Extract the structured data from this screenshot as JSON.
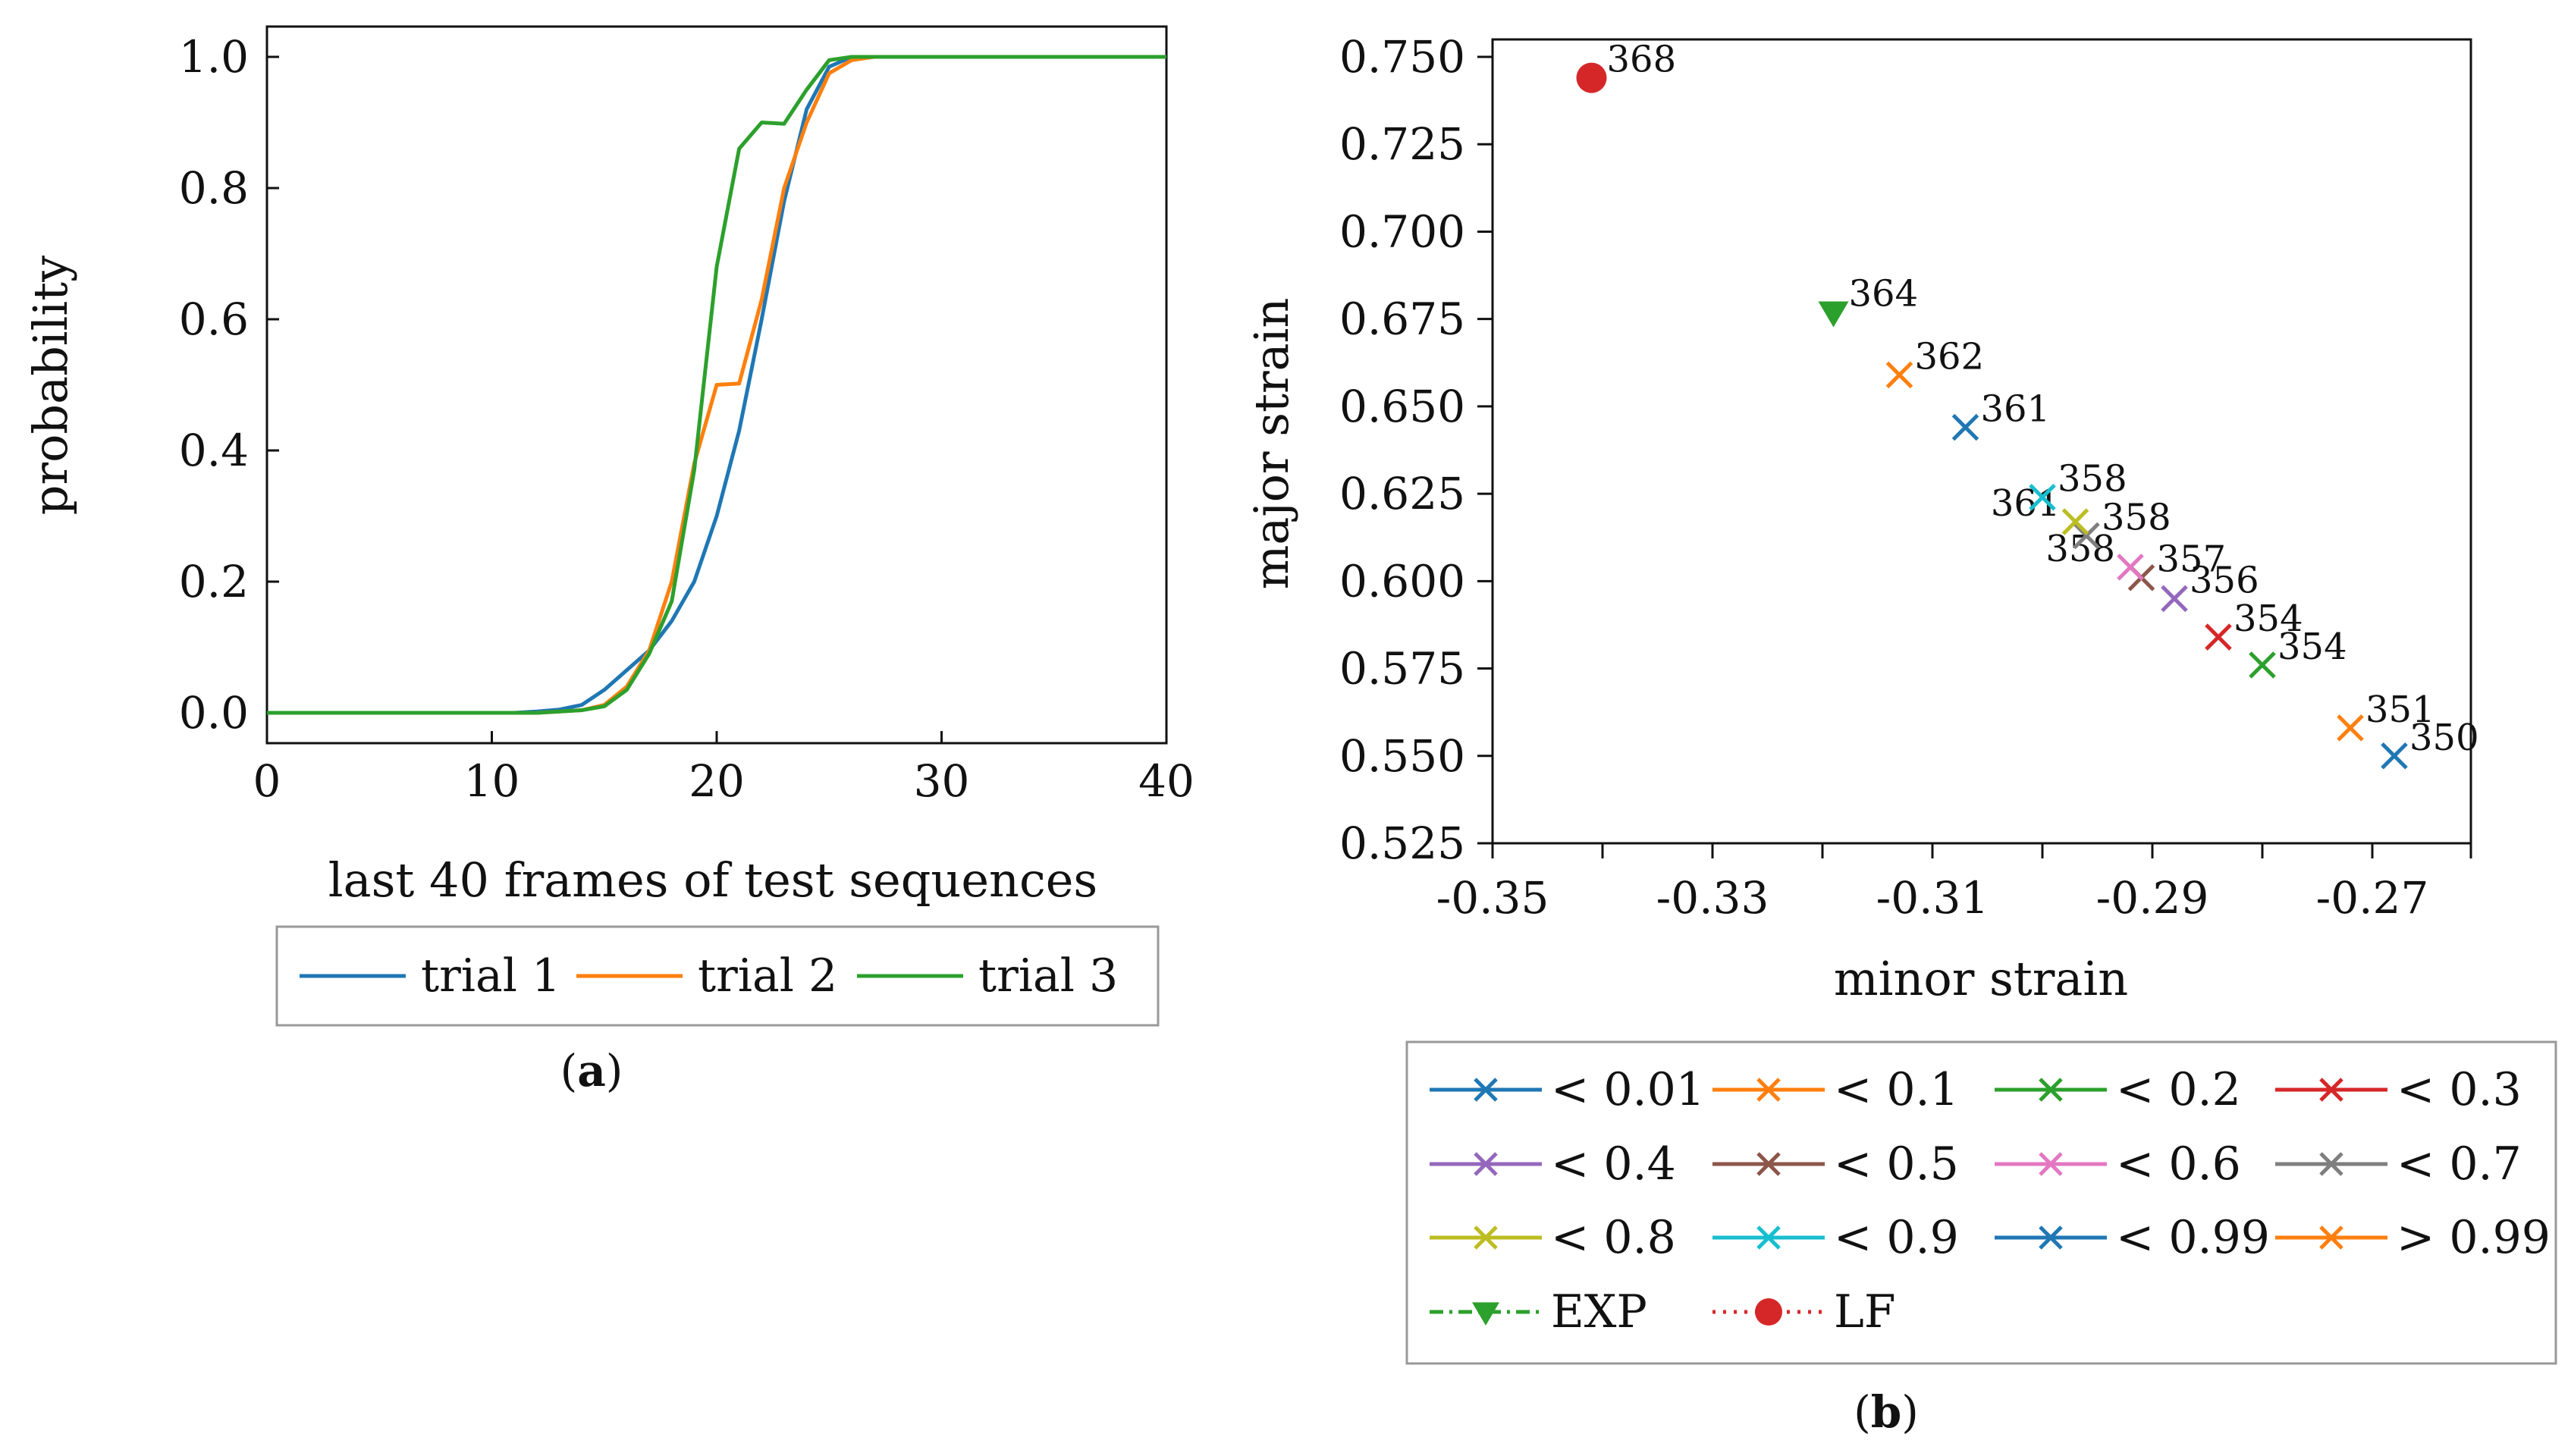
{
  "chart_data": [
    {
      "type": "line",
      "panel": "a",
      "caption": {
        "open": "(",
        "letter": "a",
        "close": ")"
      },
      "xlabel": "last 40 frames of test sequences",
      "ylabel": "probability",
      "xlim": [
        0,
        40
      ],
      "ylim": [
        0,
        1.0
      ],
      "xticks": [
        "0",
        "10",
        "20",
        "30",
        "40"
      ],
      "yticks": [
        "0.0",
        "0.2",
        "0.4",
        "0.6",
        "0.8",
        "1.0"
      ],
      "legend_position": "bottom",
      "series": [
        {
          "name": "trial 1",
          "color": "#1f77b4",
          "x": [
            0,
            11,
            12,
            13,
            14,
            15,
            16,
            17,
            18,
            19,
            20,
            21,
            22,
            23,
            24,
            25,
            26,
            27,
            28,
            40
          ],
          "y": [
            0,
            0,
            0.002,
            0.005,
            0.012,
            0.035,
            0.065,
            0.095,
            0.14,
            0.2,
            0.3,
            0.43,
            0.6,
            0.78,
            0.92,
            0.985,
            1.0,
            1.0,
            1.0,
            1.0
          ]
        },
        {
          "name": "trial 2",
          "color": "#ff7f0e",
          "x": [
            0,
            12,
            13,
            14,
            15,
            16,
            17,
            18,
            19,
            20,
            21,
            22,
            23,
            24,
            25,
            26,
            27,
            28,
            40
          ],
          "y": [
            0,
            0,
            0.002,
            0.004,
            0.012,
            0.04,
            0.095,
            0.2,
            0.38,
            0.5,
            0.502,
            0.63,
            0.8,
            0.9,
            0.975,
            0.995,
            1.0,
            1.0,
            1.0
          ]
        },
        {
          "name": "trial 3",
          "color": "#2ca02c",
          "x": [
            0,
            12,
            13,
            14,
            15,
            16,
            17,
            18,
            19,
            20,
            21,
            22,
            23,
            24,
            25,
            26,
            27,
            28,
            40
          ],
          "y": [
            0,
            0,
            0.002,
            0.004,
            0.01,
            0.035,
            0.09,
            0.17,
            0.37,
            0.68,
            0.86,
            0.9,
            0.898,
            0.95,
            0.995,
            1.0,
            1.0,
            1.0,
            1.0
          ]
        }
      ]
    },
    {
      "type": "scatter",
      "panel": "b",
      "caption": {
        "open": "(",
        "letter": "b",
        "close": ")"
      },
      "xlabel": "minor strain",
      "ylabel": "major strain",
      "xlim": [
        -0.35,
        -0.26
      ],
      "ylim": [
        0.525,
        0.75
      ],
      "xticks": [
        {
          "value": -0.35,
          "label": "-0.35"
        },
        {
          "value": -0.33,
          "label": "-0.33"
        },
        {
          "value": -0.31,
          "label": "-0.31"
        },
        {
          "value": -0.29,
          "label": "-0.29"
        },
        {
          "value": -0.27,
          "label": "-0.27"
        }
      ],
      "yticks": [
        {
          "value": 0.525,
          "label": "0.525"
        },
        {
          "value": 0.55,
          "label": "0.550"
        },
        {
          "value": 0.575,
          "label": "0.575"
        },
        {
          "value": 0.6,
          "label": "0.600"
        },
        {
          "value": 0.625,
          "label": "0.625"
        },
        {
          "value": 0.65,
          "label": "0.650"
        },
        {
          "value": 0.675,
          "label": "0.675"
        },
        {
          "value": 0.7,
          "label": "0.700"
        },
        {
          "value": 0.725,
          "label": "0.725"
        },
        {
          "value": 0.75,
          "label": "0.750"
        }
      ],
      "legend_position": "bottom",
      "legend_columns": 4,
      "legend": [
        {
          "label": "< 0.01",
          "color": "#1f77b4",
          "marker": "x"
        },
        {
          "label": "< 0.1",
          "color": "#ff7f0e",
          "marker": "x"
        },
        {
          "label": "< 0.2",
          "color": "#2ca02c",
          "marker": "x"
        },
        {
          "label": "< 0.3",
          "color": "#d62728",
          "marker": "x"
        },
        {
          "label": "< 0.4",
          "color": "#9467bd",
          "marker": "x"
        },
        {
          "label": "< 0.5",
          "color": "#8c564b",
          "marker": "x"
        },
        {
          "label": "< 0.6",
          "color": "#e377c2",
          "marker": "x"
        },
        {
          "label": "< 0.7",
          "color": "#7f7f7f",
          "marker": "x"
        },
        {
          "label": "< 0.8",
          "color": "#bcbd22",
          "marker": "x"
        },
        {
          "label": "< 0.9",
          "color": "#17becf",
          "marker": "x"
        },
        {
          "label": "< 0.99",
          "color": "#1f77b4",
          "marker": "x"
        },
        {
          "label": "> 0.99",
          "color": "#ff7f0e",
          "marker": "x"
        },
        {
          "label": "EXP",
          "color": "#2ca02c",
          "marker": "triangle-down",
          "line": "dashdot"
        },
        {
          "label": "LF",
          "color": "#d62728",
          "marker": "circle",
          "line": "dotted"
        }
      ],
      "points": [
        {
          "x": -0.268,
          "y": 0.55,
          "label": "350",
          "label_side": "right",
          "color": "#1f77b4",
          "marker": "x"
        },
        {
          "x": -0.272,
          "y": 0.558,
          "label": "351",
          "label_side": "right",
          "color": "#ff7f0e",
          "marker": "x"
        },
        {
          "x": -0.28,
          "y": 0.576,
          "label": "354",
          "label_side": "right",
          "color": "#2ca02c",
          "marker": "x"
        },
        {
          "x": -0.284,
          "y": 0.584,
          "label": "354",
          "label_side": "right",
          "color": "#d62728",
          "marker": "x"
        },
        {
          "x": -0.288,
          "y": 0.595,
          "label": "356",
          "label_side": "right",
          "color": "#9467bd",
          "marker": "x"
        },
        {
          "x": -0.291,
          "y": 0.601,
          "label": "357",
          "label_side": "right",
          "color": "#8c564b",
          "marker": "x"
        },
        {
          "x": -0.292,
          "y": 0.604,
          "label": "358",
          "label_side": "left",
          "color": "#e377c2",
          "marker": "x"
        },
        {
          "x": -0.296,
          "y": 0.613,
          "label": "358",
          "label_side": "right",
          "color": "#7f7f7f",
          "marker": "x"
        },
        {
          "x": -0.297,
          "y": 0.617,
          "label": "361",
          "label_side": "left",
          "color": "#bcbd22",
          "marker": "x"
        },
        {
          "x": -0.3,
          "y": 0.624,
          "label": "358",
          "label_side": "right",
          "color": "#17becf",
          "marker": "x"
        },
        {
          "x": -0.307,
          "y": 0.644,
          "label": "361",
          "label_side": "right",
          "color": "#1f77b4",
          "marker": "x"
        },
        {
          "x": -0.313,
          "y": 0.659,
          "label": "362",
          "label_side": "right",
          "color": "#ff7f0e",
          "marker": "x"
        },
        {
          "x": -0.319,
          "y": 0.677,
          "label": "364",
          "label_side": "right",
          "color": "#2ca02c",
          "marker": "triangle-down"
        },
        {
          "x": -0.341,
          "y": 0.744,
          "label": "368",
          "label_side": "right",
          "color": "#d62728",
          "marker": "circle"
        }
      ]
    }
  ]
}
